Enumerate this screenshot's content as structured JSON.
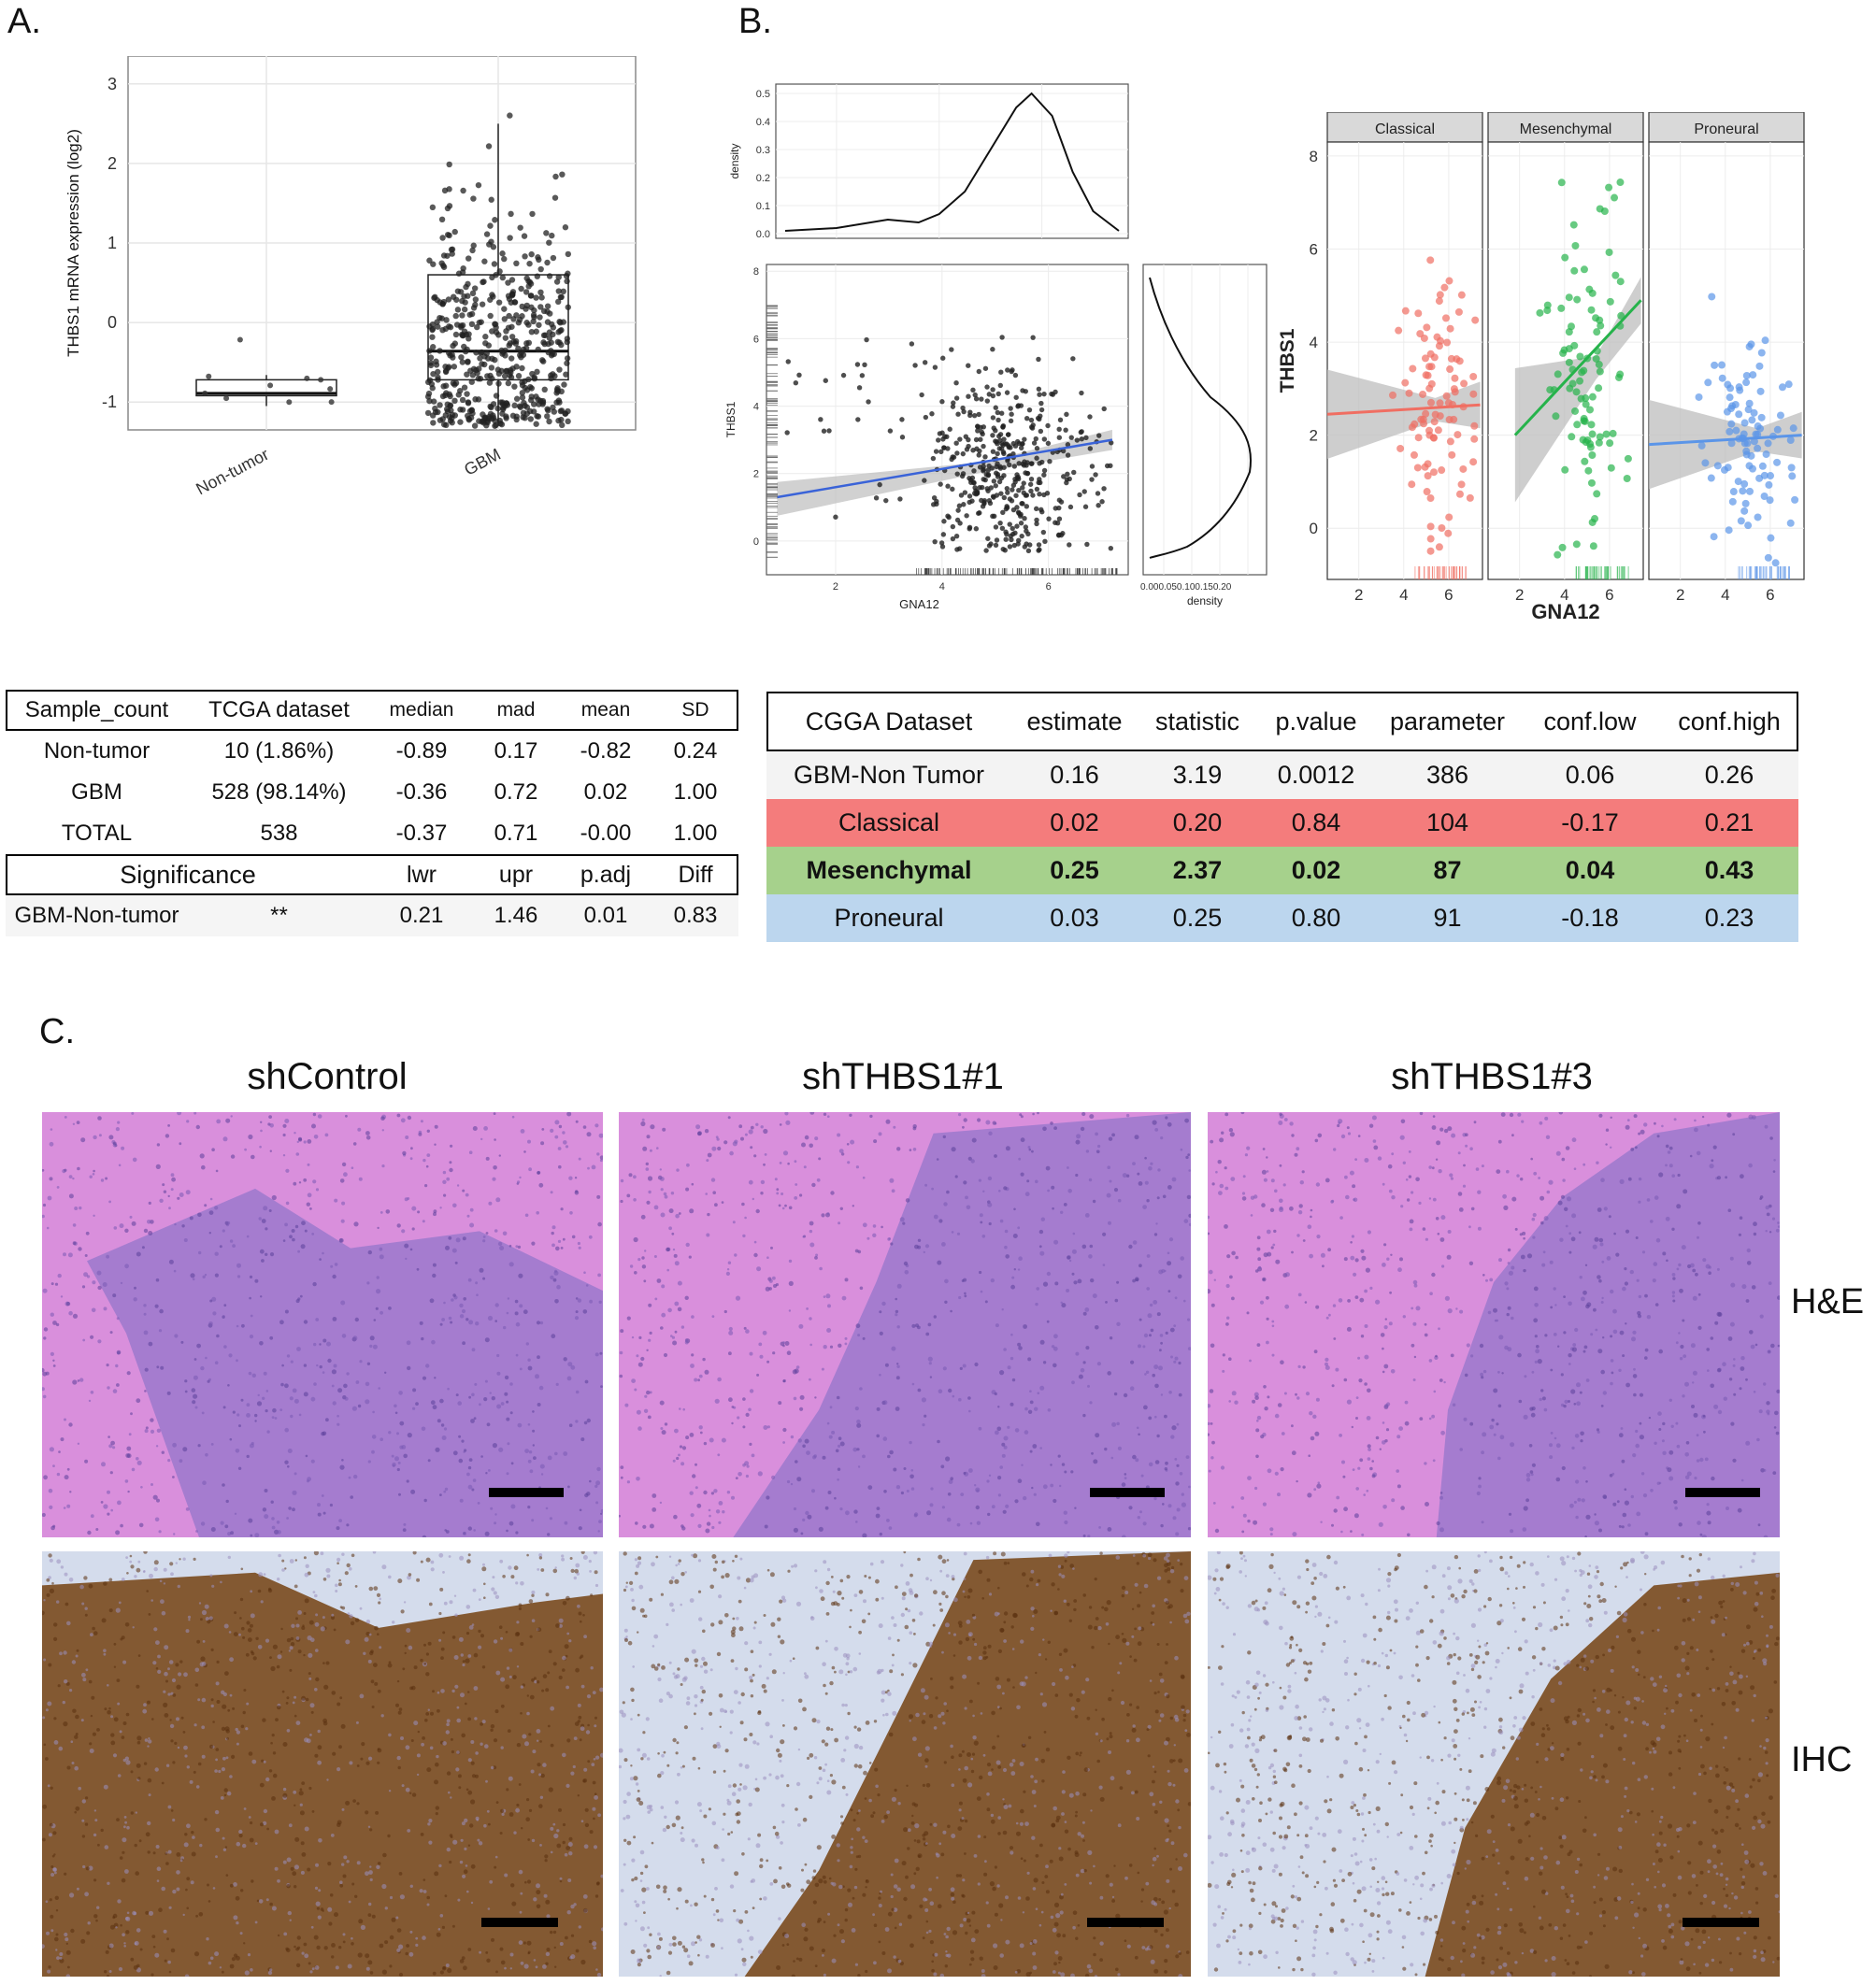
{
  "panels": {
    "a": "A.",
    "b": "B.",
    "c": "C."
  },
  "panel_a_table": {
    "header": [
      "Sample_count",
      "TCGA dataset",
      "median",
      "mad",
      "mean",
      "SD"
    ],
    "rows": [
      [
        "Non-tumor",
        "10 (1.86%)",
        "-0.89",
        "0.17",
        "-0.82",
        "0.24"
      ],
      [
        "GBM",
        "528 (98.14%)",
        "-0.36",
        "0.72",
        "0.02",
        "1.00"
      ],
      [
        "TOTAL",
        "538",
        "-0.37",
        "0.71",
        "-0.00",
        "1.00"
      ]
    ],
    "sig_header": [
      "Significance",
      "lwr",
      "upr",
      "p.adj",
      "Diff"
    ],
    "sig_row": [
      "GBM-Non-tumor",
      "**",
      "0.21",
      "1.46",
      "0.01",
      "0.83"
    ]
  },
  "panel_b_table": {
    "header": [
      "CGGA Dataset",
      "estimate",
      "statistic",
      "p.value",
      "parameter",
      "conf.low",
      "conf.high"
    ],
    "rows": [
      {
        "cells": [
          "GBM-Non Tumor",
          "0.16",
          "3.19",
          "0.0012",
          "386",
          "0.06",
          "0.26"
        ],
        "bg": "#f3f3f3",
        "bold": false
      },
      {
        "cells": [
          "Classical",
          "0.02",
          "0.20",
          "0.84",
          "104",
          "-0.17",
          "0.21"
        ],
        "bg": "#f47c7c",
        "bold": false
      },
      {
        "cells": [
          "Mesenchymal",
          "0.25",
          "2.37",
          "0.02",
          "87",
          "0.04",
          "0.43"
        ],
        "bg": "#a6d18c",
        "bold": true
      },
      {
        "cells": [
          "Proneural",
          "0.03",
          "0.25",
          "0.80",
          "91",
          "-0.18",
          "0.23"
        ],
        "bg": "#bcd6ee",
        "bold": false
      }
    ]
  },
  "panel_c": {
    "columns": [
      "shControl",
      "shTHBS1#1",
      "shTHBS1#3"
    ],
    "rows": [
      "H&E",
      "IHC"
    ],
    "he_colors": {
      "normal": "#d98fdc",
      "tumor": "#9b79cc"
    },
    "ihc_colors": {
      "normal": "#d4dcec",
      "tumor": "#7a4a1e"
    }
  },
  "chart_data": [
    {
      "type": "box",
      "ylabel": "THBS1 mRNA expression (log2)",
      "categories": [
        "Non-tumor",
        "GBM"
      ],
      "yticks": [
        -1,
        0,
        1,
        2,
        3
      ],
      "ylim": [
        -1.35,
        3.35
      ],
      "boxes": [
        {
          "name": "Non-tumor",
          "q1": -0.92,
          "median": -0.89,
          "q3": -0.72,
          "whisker_low": -1.05,
          "whisker_high": -0.66
        },
        {
          "name": "GBM",
          "q1": -0.72,
          "median": -0.36,
          "q3": 0.6,
          "whisker_low": -1.3,
          "whisker_high": 2.5
        }
      ]
    },
    {
      "type": "density",
      "ylabel": "density",
      "yticks": [
        0.0,
        0.1,
        0.2,
        0.3,
        0.4,
        0.5
      ],
      "labels": [
        "0.0",
        "0.1",
        "0.2",
        "0.3",
        "0.4",
        "0.5"
      ],
      "x": [
        1,
        2,
        3,
        3.6,
        4,
        4.5,
        5,
        5.5,
        5.8,
        6.2,
        6.6,
        7,
        7.5
      ],
      "y": [
        0.01,
        0.02,
        0.05,
        0.04,
        0.07,
        0.15,
        0.3,
        0.45,
        0.5,
        0.42,
        0.22,
        0.08,
        0.01
      ]
    },
    {
      "type": "scatter",
      "xlabel": "GNA12",
      "ylabel": "THBS1",
      "xticks": [
        2,
        4,
        6
      ],
      "yticks": [
        0,
        2,
        4,
        6,
        8
      ],
      "xlim": [
        0.7,
        7.5
      ],
      "ylim": [
        -1,
        8.2
      ],
      "fit": {
        "x0": 0.9,
        "y0": 1.3,
        "x1": 7.2,
        "y1": 3.0
      }
    },
    {
      "type": "density",
      "xlabel": "density",
      "tick_text": "0.000.050.100.150.20"
    },
    {
      "type": "scatter",
      "xlabel": "GNA12",
      "ylabel": "THBS1",
      "facets": [
        "Classical",
        "Mesenchymal",
        "Proneural"
      ],
      "xticks": [
        2,
        4,
        6
      ],
      "yticks": [
        0,
        2,
        4,
        6,
        8
      ],
      "xlim": [
        0.6,
        7.5
      ],
      "ylim": [
        -1.1,
        8.3
      ],
      "colors": [
        "#f06e62",
        "#26b34b",
        "#5b95e8"
      ],
      "fits": [
        {
          "facet": "Classical",
          "x0": 0.6,
          "y0": 2.45,
          "x1": 7.4,
          "y1": 2.65
        },
        {
          "facet": "Mesenchymal",
          "x0": 1.8,
          "y0": 2.0,
          "x1": 7.4,
          "y1": 4.9
        },
        {
          "facet": "Proneural",
          "x0": 0.6,
          "y0": 1.8,
          "x1": 7.4,
          "y1": 2.0
        }
      ]
    }
  ]
}
